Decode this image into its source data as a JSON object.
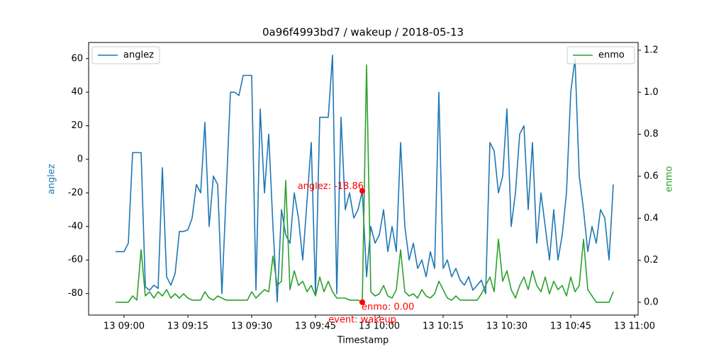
{
  "chart_data": {
    "type": "line",
    "title": "0a96f4993bd7 / wakeup / 2018-05-13",
    "xlabel": "Timestamp",
    "ylabel": "anglez",
    "y2label": "enmo",
    "x": [
      "13 08:58",
      "13 08:59",
      "13 09:00",
      "13 09:01",
      "13 09:02",
      "13 09:03",
      "13 09:04",
      "13 09:05",
      "13 09:06",
      "13 09:07",
      "13 09:08",
      "13 09:09",
      "13 09:10",
      "13 09:11",
      "13 09:12",
      "13 09:13",
      "13 09:14",
      "13 09:15",
      "13 09:16",
      "13 09:17",
      "13 09:18",
      "13 09:19",
      "13 09:20",
      "13 09:21",
      "13 09:22",
      "13 09:23",
      "13 09:24",
      "13 09:25",
      "13 09:26",
      "13 09:27",
      "13 09:28",
      "13 09:29",
      "13 09:30",
      "13 09:31",
      "13 09:32",
      "13 09:33",
      "13 09:34",
      "13 09:35",
      "13 09:36",
      "13 09:37",
      "13 09:38",
      "13 09:39",
      "13 09:40",
      "13 09:41",
      "13 09:42",
      "13 09:43",
      "13 09:44",
      "13 09:45",
      "13 09:46",
      "13 09:47",
      "13 09:48",
      "13 09:49",
      "13 09:50",
      "13 09:51",
      "13 09:52",
      "13 09:53",
      "13 09:54",
      "13 09:55",
      "13 09:56",
      "13 09:57",
      "13 09:58",
      "13 09:59",
      "13 10:00",
      "13 10:01",
      "13 10:02",
      "13 10:03",
      "13 10:04",
      "13 10:05",
      "13 10:06",
      "13 10:07",
      "13 10:08",
      "13 10:09",
      "13 10:10",
      "13 10:11",
      "13 10:12",
      "13 10:13",
      "13 10:14",
      "13 10:15",
      "13 10:16",
      "13 10:17",
      "13 10:18",
      "13 10:19",
      "13 10:20",
      "13 10:21",
      "13 10:22",
      "13 10:23",
      "13 10:24",
      "13 10:25",
      "13 10:26",
      "13 10:27",
      "13 10:28",
      "13 10:29",
      "13 10:30",
      "13 10:31",
      "13 10:32",
      "13 10:33",
      "13 10:34",
      "13 10:35",
      "13 10:36",
      "13 10:37",
      "13 10:38",
      "13 10:39",
      "13 10:40",
      "13 10:41",
      "13 10:42",
      "13 10:43",
      "13 10:44",
      "13 10:45",
      "13 10:46",
      "13 10:47",
      "13 10:48",
      "13 10:49",
      "13 10:50",
      "13 10:51",
      "13 10:52",
      "13 10:53",
      "13 10:54",
      "13 10:55"
    ],
    "series": [
      {
        "name": "anglez",
        "color": "#1f77b4",
        "axis": "y",
        "values": [
          -55,
          -55,
          -55,
          -50,
          4,
          4,
          4,
          -76,
          -78,
          -75,
          -77,
          -5,
          -70,
          -75,
          -68,
          -43,
          -43,
          -42,
          -35,
          -15,
          -20,
          22,
          -40,
          -10,
          -15,
          -80,
          -20,
          40,
          40,
          38,
          50,
          50,
          50,
          -78,
          30,
          -20,
          15,
          -40,
          -85,
          -30,
          -45,
          -50,
          -20,
          -35,
          -60,
          -25,
          10,
          -80,
          25,
          25,
          25,
          62,
          -80,
          25,
          -30,
          -20,
          -35,
          -30,
          -18.86,
          -70,
          -40,
          -50,
          -45,
          -30,
          -55,
          -40,
          -55,
          10,
          -40,
          -60,
          -50,
          -65,
          -60,
          -70,
          -55,
          -65,
          40,
          -65,
          -60,
          -70,
          -65,
          -72,
          -75,
          -70,
          -78,
          -75,
          -72,
          -80,
          10,
          5,
          -20,
          -10,
          30,
          -40,
          -20,
          15,
          20,
          -30,
          10,
          -50,
          -20,
          -40,
          -60,
          -30,
          -60,
          -45,
          -20,
          40,
          60,
          -10,
          -30,
          -55,
          -40,
          -50,
          -30,
          -35,
          -60,
          -15
        ]
      },
      {
        "name": "enmo",
        "color": "#2ca02c",
        "axis": "y2",
        "values": [
          0,
          0,
          0,
          0,
          0.03,
          0.01,
          0.25,
          0.03,
          0.05,
          0.02,
          0.05,
          0.03,
          0.06,
          0.02,
          0.04,
          0.02,
          0.04,
          0.02,
          0.01,
          0.01,
          0.01,
          0.05,
          0.02,
          0.01,
          0.03,
          0.02,
          0.01,
          0.01,
          0.01,
          0.01,
          0.01,
          0.01,
          0.05,
          0.02,
          0.04,
          0.06,
          0.05,
          0.22,
          0.08,
          0.1,
          0.58,
          0.06,
          0.15,
          0.08,
          0.1,
          0.05,
          0.08,
          0.03,
          0.12,
          0.05,
          0.1,
          0.05,
          0.02,
          0.02,
          0.02,
          0.01,
          0.01,
          0.01,
          0,
          1.13,
          0.05,
          0.03,
          0.04,
          0.08,
          0.03,
          0.02,
          0.06,
          0.25,
          0.05,
          0.03,
          0.04,
          0.02,
          0.06,
          0.03,
          0.02,
          0.04,
          0.1,
          0.06,
          0.02,
          0.01,
          0.03,
          0.01,
          0.01,
          0.01,
          0.01,
          0.01,
          0.04,
          0.08,
          0.12,
          0.05,
          0.3,
          0.1,
          0.15,
          0.06,
          0.02,
          0.08,
          0.12,
          0.06,
          0.15,
          0.08,
          0.05,
          0.12,
          0.04,
          0.1,
          0.06,
          0.08,
          0.03,
          0.12,
          0.05,
          0.08,
          0.3,
          0.06,
          0.03,
          0,
          0,
          0,
          0,
          0.05
        ]
      }
    ],
    "xlim": [
      "13 08:51:40",
      "13 11:00:50"
    ],
    "xticks": [
      "13 09:00",
      "13 09:15",
      "13 09:30",
      "13 09:45",
      "13 10:00",
      "13 10:15",
      "13 10:30",
      "13 10:45",
      "13 11:00"
    ],
    "ylim": [
      -92.8,
      69.6
    ],
    "yticks": [
      -80,
      -60,
      -40,
      -20,
      0,
      20,
      40,
      60
    ],
    "y2lim": [
      -0.061,
      1.237
    ],
    "y2ticks": [
      {
        "value": 0,
        "label": "0.0"
      },
      0.2,
      0.4,
      0.6,
      0.8,
      {
        "value": 1,
        "label": "1.0"
      },
      1.2
    ],
    "legend": {
      "anglez": "upper left",
      "enmo": "upper right"
    },
    "annotations": [
      {
        "text": "anglez: -18.86",
        "x": "13 09:56",
        "y": -18.86,
        "axis": "y",
        "color": "red"
      },
      {
        "text": "enmo: 0.00",
        "x": "13 09:56",
        "y": 0,
        "axis": "y2",
        "color": "red"
      },
      {
        "text": "event: wakeup",
        "x": "13 09:56",
        "color": "red"
      }
    ]
  }
}
